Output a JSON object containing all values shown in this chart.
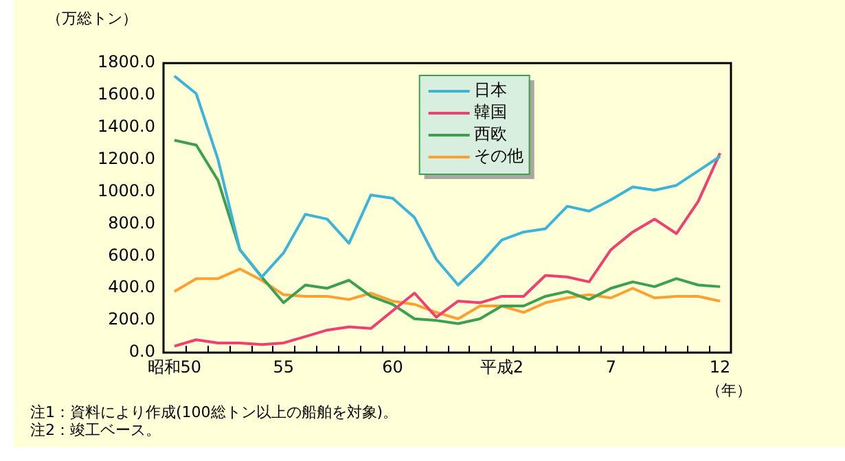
{
  "chart_data": {
    "type": "line",
    "ylabel": "（万総トン）",
    "xlabel": "（年）",
    "categories": [
      "昭和50",
      null,
      null,
      null,
      null,
      "55",
      null,
      null,
      null,
      null,
      "60",
      null,
      null,
      null,
      null,
      "平成2",
      null,
      null,
      null,
      null,
      "7",
      null,
      null,
      null,
      null,
      "12"
    ],
    "series": [
      {
        "name": "日本",
        "color": "#3cb4d8",
        "values": [
          1720,
          1610,
          1200,
          640,
          470,
          620,
          860,
          830,
          680,
          980,
          960,
          840,
          580,
          420,
          550,
          700,
          750,
          770,
          910,
          880,
          950,
          1030,
          1010,
          1040,
          1130,
          1220
        ]
      },
      {
        "name": "韓国",
        "color": "#f04070",
        "values": [
          40,
          80,
          60,
          60,
          50,
          60,
          100,
          140,
          160,
          150,
          260,
          370,
          220,
          320,
          310,
          350,
          350,
          480,
          470,
          440,
          640,
          750,
          830,
          740,
          940,
          1240
        ]
      },
      {
        "name": "西欧",
        "color": "#3ca050",
        "values": [
          1320,
          1290,
          1070,
          640,
          470,
          310,
          420,
          400,
          450,
          350,
          300,
          210,
          200,
          180,
          210,
          290,
          290,
          350,
          380,
          330,
          400,
          440,
          410,
          460,
          420,
          410
        ]
      },
      {
        "name": "その他",
        "color": "#ffa030",
        "values": [
          380,
          460,
          460,
          520,
          450,
          360,
          350,
          350,
          330,
          370,
          320,
          300,
          250,
          210,
          290,
          290,
          250,
          310,
          340,
          360,
          340,
          400,
          340,
          350,
          350,
          320
        ]
      }
    ],
    "ylim": [
      0,
      1800
    ],
    "yticks": [
      {
        "value": 0,
        "label": "0.0"
      },
      {
        "value": 200,
        "label": "200.0"
      },
      {
        "value": 400,
        "label": "400.0"
      },
      {
        "value": 600,
        "label": "600.0"
      },
      {
        "value": 800,
        "label": "800.0"
      },
      {
        "value": 1000,
        "label": "1000.0"
      },
      {
        "value": 1200,
        "label": "1200.0"
      },
      {
        "value": 1400,
        "label": "1400.0"
      },
      {
        "value": 1600,
        "label": "1600.0"
      },
      {
        "value": 1800,
        "label": "1800.0"
      }
    ],
    "grid": false,
    "legend": "top",
    "marker": "none",
    "line_style": "solid",
    "annotations": [
      "注1：資料により作成(100総トン以上の船舶を対象)。",
      "注2：竣工ベース。"
    ]
  }
}
